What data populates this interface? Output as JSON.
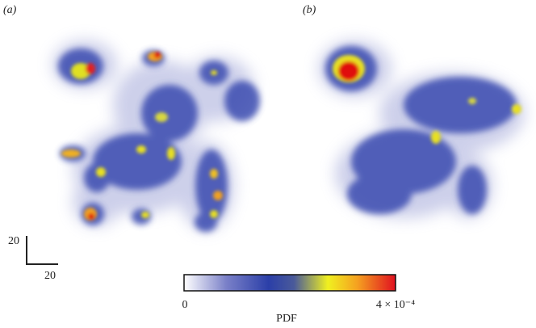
{
  "panels": [
    {
      "label": "(a)"
    },
    {
      "label": "(b)"
    }
  ],
  "scale_bar": {
    "vertical": "20",
    "horizontal": "20"
  },
  "colorbar": {
    "label": "PDF",
    "min": "0",
    "max": "4 × 10⁻⁴"
  }
}
